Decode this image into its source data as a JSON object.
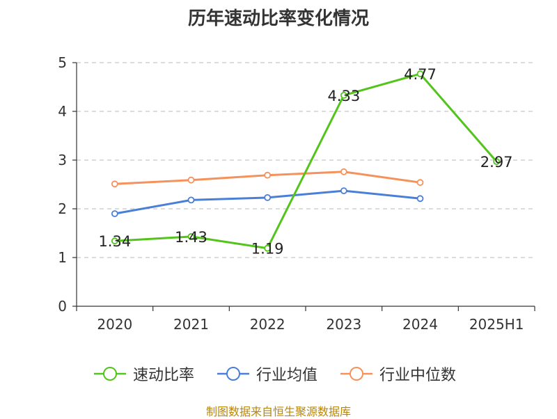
{
  "chart_data": {
    "type": "line",
    "title": "历年速动比率变化情况",
    "categories": [
      "2020",
      "2021",
      "2022",
      "2023",
      "2024",
      "2025H1"
    ],
    "ylim": [
      0,
      5
    ],
    "yticks": [
      0,
      1,
      2,
      3,
      4,
      5
    ],
    "grid": true,
    "legend_position": "bottom",
    "series": [
      {
        "name": "速动比率",
        "color": "#52c41a",
        "labels": true,
        "values": [
          1.34,
          1.43,
          1.19,
          4.33,
          4.77,
          2.97
        ]
      },
      {
        "name": "行业均值",
        "color": "#4a7fd8",
        "labels": false,
        "values": [
          1.9,
          2.18,
          2.23,
          2.37,
          2.21,
          null
        ]
      },
      {
        "name": "行业中位数",
        "color": "#f5925b",
        "labels": false,
        "values": [
          2.51,
          2.59,
          2.69,
          2.76,
          2.54,
          null
        ]
      }
    ]
  },
  "source": "制图数据来自恒生聚源数据库"
}
